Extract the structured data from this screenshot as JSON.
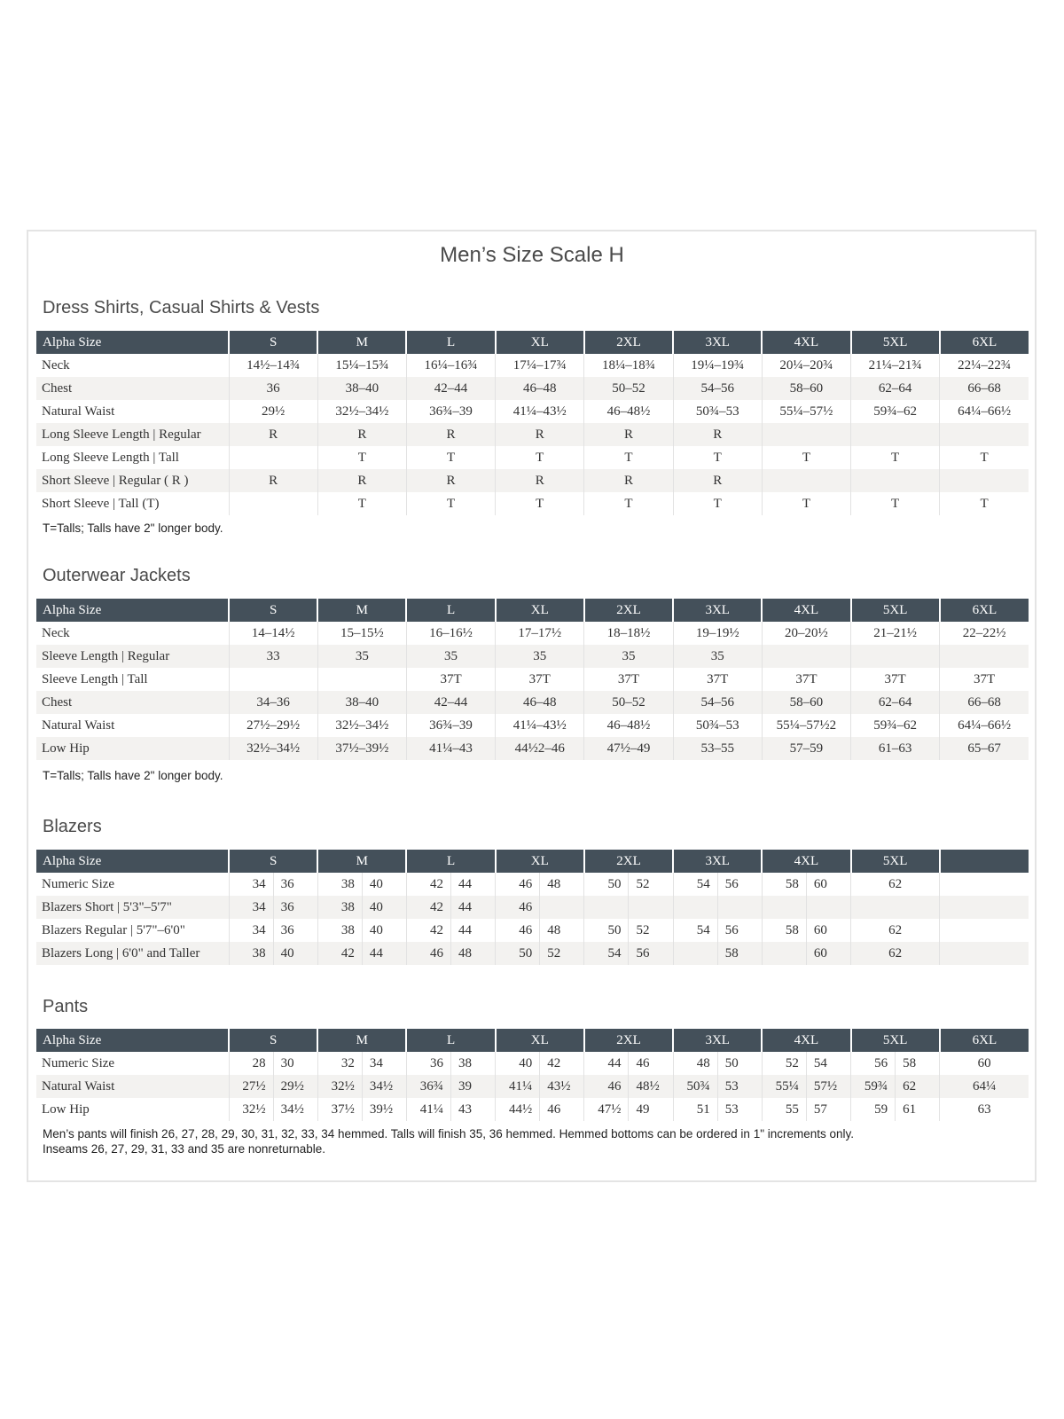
{
  "title": "Men’s Size Scale H",
  "colors": {
    "header_bg": "#44505a",
    "stripe": "#f3f2f0",
    "border": "#e4e4e4"
  },
  "sections": [
    {
      "title": "Dress Shirts, Casual Shirts & Vests",
      "header": [
        "Alpha Size",
        "S",
        "M",
        "L",
        "XL",
        "2XL",
        "3XL",
        "4XL",
        "5XL",
        "6XL"
      ],
      "rows": [
        [
          "Neck",
          "14½–14¾",
          "15¼–15¾",
          "16¼–16¾",
          "17¼–17¾",
          "18¼–18¾",
          "19¼–19¾",
          "20¼–20¾",
          "21¼–21¾",
          "22¼–22¾"
        ],
        [
          "Chest",
          "36",
          "38–40",
          "42–44",
          "46–48",
          "50–52",
          "54–56",
          "58–60",
          "62–64",
          "66–68"
        ],
        [
          "Natural Waist",
          "29½",
          "32½–34½",
          "36¾–39",
          "41¼–43½",
          "46–48½",
          "50¾–53",
          "55¼–57½",
          "59¾–62",
          "64¼–66½"
        ],
        [
          "Long Sleeve Length  |  Regular",
          "R",
          "R",
          "R",
          "R",
          "R",
          "R",
          "",
          "",
          ""
        ],
        [
          "Long Sleeve Length  |  Tall",
          "",
          "T",
          "T",
          "T",
          "T",
          "T",
          "T",
          "T",
          "T"
        ],
        [
          "Short Sleeve  |  Regular ( R )",
          "R",
          "R",
          "R",
          "R",
          "R",
          "R",
          "",
          "",
          ""
        ],
        [
          "Short Sleeve  |  Tall (T)",
          "",
          "T",
          "T",
          "T",
          "T",
          "T",
          "T",
          "T",
          "T"
        ]
      ],
      "note": "T=Talls; Talls have 2\" longer body."
    },
    {
      "title": "Outerwear Jackets",
      "header": [
        "Alpha Size",
        "S",
        "M",
        "L",
        "XL",
        "2XL",
        "3XL",
        "4XL",
        "5XL",
        "6XL"
      ],
      "rows": [
        [
          "Neck",
          "14–14½",
          "15–15½",
          "16–16½",
          "17–17½",
          "18–18½",
          "19–19½",
          "20–20½",
          "21–21½",
          "22–22½"
        ],
        [
          "Sleeve Length  |  Regular",
          "33",
          "35",
          "35",
          "35",
          "35",
          "35",
          "",
          "",
          ""
        ],
        [
          "Sleeve Length  |  Tall",
          "",
          "",
          "37T",
          "37T",
          "37T",
          "37T",
          "37T",
          "37T",
          "37T"
        ],
        [
          "Chest",
          "34–36",
          "38–40",
          "42–44",
          "46–48",
          "50–52",
          "54–56",
          "58–60",
          "62–64",
          "66–68"
        ],
        [
          "Natural Waist",
          "27½–29½",
          "32½–34½",
          "36¾–39",
          "41¼–43½",
          "46–48½",
          "50¾–53",
          "55¼–57½2",
          "59¾–62",
          "64¼–66½"
        ],
        [
          "Low Hip",
          "32½–34½",
          "37½–39½",
          "41¼–43",
          "44½2–46",
          "47½–49",
          "53–55",
          "57–59",
          "61–63",
          "65–67"
        ]
      ],
      "note": "T=Talls; Talls have 2\" longer body."
    },
    {
      "title": "Blazers",
      "header": [
        "Alpha Size",
        "S",
        "M",
        "L",
        "XL",
        "2XL",
        "3XL",
        "4XL",
        "5XL",
        ""
      ],
      "rows": [
        [
          "Numeric Size",
          [
            "34",
            "36"
          ],
          [
            "38",
            "40"
          ],
          [
            "42",
            "44"
          ],
          [
            "46",
            "48"
          ],
          [
            "50",
            "52"
          ],
          [
            "54",
            "56"
          ],
          [
            "58",
            "60"
          ],
          "62",
          ""
        ],
        [
          "Blazers Short  |  5'3\"–5'7\"",
          [
            "34",
            "36"
          ],
          [
            "38",
            "40"
          ],
          [
            "42",
            "44"
          ],
          [
            "46",
            ""
          ],
          [
            "",
            ""
          ],
          [
            "",
            ""
          ],
          [
            "",
            ""
          ],
          "",
          ""
        ],
        [
          "Blazers Regular  |  5'7\"–6'0\"",
          [
            "34",
            "36"
          ],
          [
            "38",
            "40"
          ],
          [
            "42",
            "44"
          ],
          [
            "46",
            "48"
          ],
          [
            "50",
            "52"
          ],
          [
            "54",
            "56"
          ],
          [
            "58",
            "60"
          ],
          "62",
          ""
        ],
        [
          "Blazers Long  |  6'0\" and Taller",
          [
            "38",
            "40"
          ],
          [
            "42",
            "44"
          ],
          [
            "46",
            "48"
          ],
          [
            "50",
            "52"
          ],
          [
            "54",
            "56"
          ],
          [
            "",
            "58"
          ],
          [
            "",
            "60"
          ],
          "62",
          ""
        ]
      ]
    },
    {
      "title": "Pants",
      "header": [
        "Alpha Size",
        "S",
        "M",
        "L",
        "XL",
        "2XL",
        "3XL",
        "4XL",
        "5XL",
        "6XL"
      ],
      "rows": [
        [
          "Numeric Size",
          [
            "28",
            "30"
          ],
          [
            "32",
            "34"
          ],
          [
            "36",
            "38"
          ],
          [
            "40",
            "42"
          ],
          [
            "44",
            "46"
          ],
          [
            "48",
            "50"
          ],
          [
            "52",
            "54"
          ],
          [
            "56",
            "58"
          ],
          "60"
        ],
        [
          "Natural Waist",
          [
            "27½",
            "29½"
          ],
          [
            "32½",
            "34½"
          ],
          [
            "36¾",
            "39"
          ],
          [
            "41¼",
            "43½"
          ],
          [
            "46",
            "48½"
          ],
          [
            "50¾",
            "53"
          ],
          [
            "55¼",
            "57½"
          ],
          [
            "59¾",
            "62"
          ],
          "64¼"
        ],
        [
          "Low Hip",
          [
            "32½",
            "34½"
          ],
          [
            "37½",
            "39½"
          ],
          [
            "41¼",
            "43"
          ],
          [
            "44½",
            "46"
          ],
          [
            "47½",
            "49"
          ],
          [
            "51",
            "53"
          ],
          [
            "55",
            "57"
          ],
          [
            "59",
            "61"
          ],
          "63"
        ]
      ],
      "note": "Men’s pants will finish 26, 27, 28, 29, 30, 31, 32, 33, 34 hemmed. Talls will finish 35, 36 hemmed. Hemmed bottoms can be ordered in 1\" increments only.",
      "note2": "Inseams 26, 27, 29, 31, 33 and 35 are nonreturnable."
    }
  ]
}
